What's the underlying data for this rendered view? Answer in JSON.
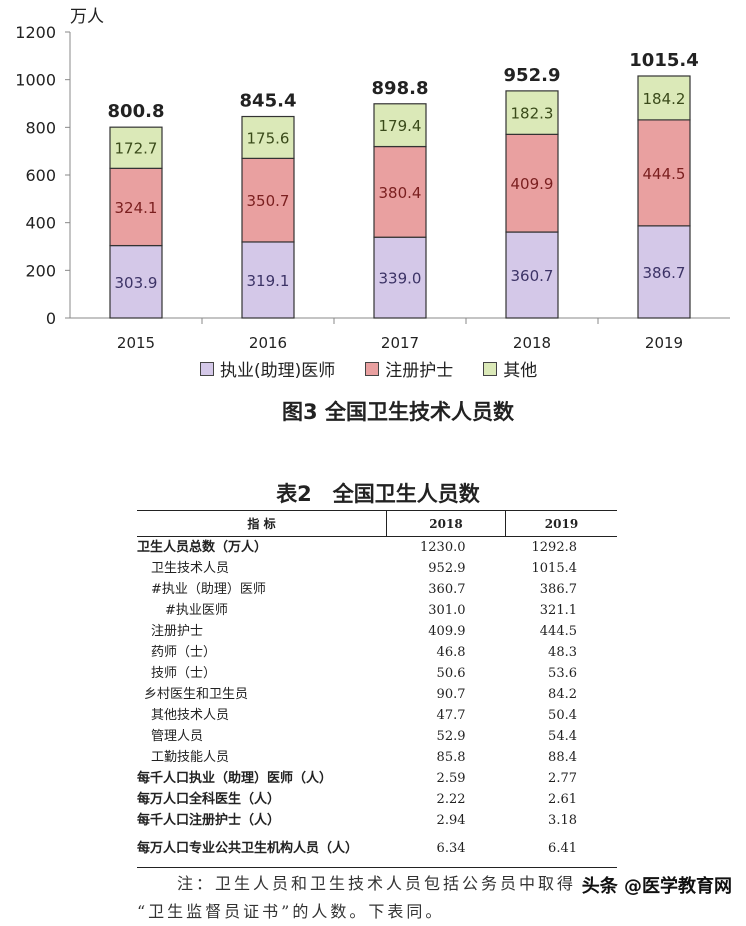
{
  "chart_data": {
    "type": "bar",
    "stacked": true,
    "ylabel": "万人",
    "ylim": [
      0,
      1200
    ],
    "yticks": [
      0,
      200,
      400,
      600,
      800,
      1000,
      1200
    ],
    "categories": [
      "2015",
      "2016",
      "2017",
      "2018",
      "2019"
    ],
    "series": [
      {
        "name": "执业(助理)医师",
        "values": [
          303.9,
          319.1,
          339.0,
          360.7,
          386.7
        ],
        "color": "#d4c8e8"
      },
      {
        "name": "注册护士",
        "values": [
          324.1,
          350.7,
          380.4,
          409.9,
          444.5
        ],
        "color": "#e9a0a0"
      },
      {
        "name": "其他",
        "values": [
          172.7,
          175.6,
          179.4,
          182.3,
          184.2
        ],
        "color": "#dbe9b8"
      }
    ],
    "totals": [
      800.8,
      845.4,
      898.8,
      952.9,
      1015.4
    ],
    "title": "图3  全国卫生技术人员数",
    "legend": "bottom",
    "grid": false
  },
  "table": {
    "title": "表2　全国卫生人员数",
    "headers": [
      "指 标",
      "2018",
      "2019"
    ],
    "rows": [
      {
        "label": "卫生人员总数（万人）",
        "v2018": "1230.0",
        "v2019": "1292.8",
        "bold": true,
        "indent": 0
      },
      {
        "label": "卫生技术人员",
        "v2018": "952.9",
        "v2019": "1015.4",
        "indent": 1
      },
      {
        "label": "#执业（助理）医师",
        "v2018": "360.7",
        "v2019": "386.7",
        "indent": 1
      },
      {
        "label": "#执业医师",
        "v2018": "301.0",
        "v2019": "321.1",
        "indent": 2
      },
      {
        "label": "注册护士",
        "v2018": "409.9",
        "v2019": "444.5",
        "indent": 1
      },
      {
        "label": "药师（士）",
        "v2018": "46.8",
        "v2019": "48.3",
        "indent": 1
      },
      {
        "label": "技师（士）",
        "v2018": "50.6",
        "v2019": "53.6",
        "indent": 1
      },
      {
        "label": "乡村医生和卫生员",
        "v2018": "90.7",
        "v2019": "84.2",
        "indent": 0.5
      },
      {
        "label": "其他技术人员",
        "v2018": "47.7",
        "v2019": "50.4",
        "indent": 1
      },
      {
        "label": "管理人员",
        "v2018": "52.9",
        "v2019": "54.4",
        "indent": 1
      },
      {
        "label": "工勤技能人员",
        "v2018": "85.8",
        "v2019": "88.4",
        "indent": 1
      },
      {
        "label": "每千人口执业（助理）医师（人）",
        "v2018": "2.59",
        "v2019": "2.77",
        "bold": true,
        "indent": 0
      },
      {
        "label": "每万人口全科医生（人）",
        "v2018": "2.22",
        "v2019": "2.61",
        "bold": true,
        "indent": 0
      },
      {
        "label": "每千人口注册护士（人）",
        "v2018": "2.94",
        "v2019": "3.18",
        "bold": true,
        "indent": 0
      },
      {
        "label": "每万人口专业公共卫生机构人员（人）",
        "v2018": "6.34",
        "v2019": "6.41",
        "bold": true,
        "indent": 0
      }
    ]
  },
  "note": {
    "line1": "注：卫生人员和卫生技术人员包括公务员中取得",
    "line2": "“卫生监督员证书”的人数。下表同。"
  },
  "watermark": "头条 @医学教育网"
}
